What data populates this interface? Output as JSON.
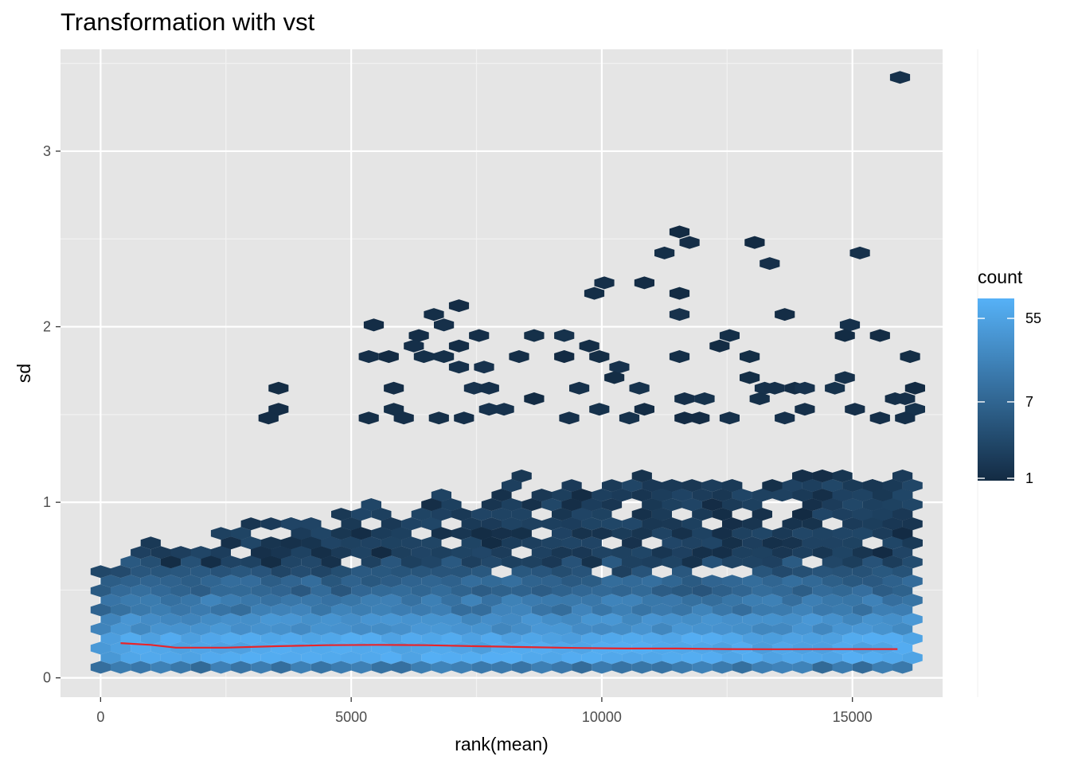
{
  "chart_data": {
    "type": "hexbin",
    "title": "Transformation with vst",
    "xlabel": "rank(mean)",
    "ylabel": "sd",
    "xlim": [
      -800,
      16800
    ],
    "ylim": [
      -0.11,
      3.58
    ],
    "x_ticks": [
      0,
      5000,
      10000,
      15000
    ],
    "x_tick_labels": [
      "0",
      "5000",
      "10000",
      "15000"
    ],
    "y_ticks": [
      0,
      1,
      2,
      3
    ],
    "y_tick_labels": [
      "0",
      "1",
      "2",
      "3"
    ],
    "grid": true,
    "legend": {
      "title": "count",
      "position": "right",
      "scale": "log",
      "range": [
        1,
        90
      ],
      "breaks": [
        1,
        7,
        55
      ],
      "break_labels": [
        "1",
        "7",
        "55"
      ],
      "color_low": "#132B43",
      "color_high": "#56B1F7"
    },
    "trend_line": {
      "color": "#e8242a",
      "x": [
        400,
        1000,
        1500,
        2500,
        3500,
        4500,
        5500,
        6500,
        7500,
        8500,
        9500,
        10500,
        11500,
        12500,
        13500,
        14500,
        15900
      ],
      "y": [
        0.198,
        0.188,
        0.172,
        0.172,
        0.18,
        0.186,
        0.188,
        0.186,
        0.18,
        0.175,
        0.17,
        0.167,
        0.167,
        0.164,
        0.163,
        0.164,
        0.164
      ]
    },
    "hexbin_bins": {
      "x_step": 400,
      "y_step": 0.0545,
      "columns": [
        0,
        41
      ],
      "y_min": 0.0,
      "sparse_outliers": [
        [
          15950,
          3.42
        ],
        [
          11550,
          2.54
        ],
        [
          11750,
          2.48
        ],
        [
          13050,
          2.48
        ],
        [
          11250,
          2.42
        ],
        [
          15150,
          2.42
        ],
        [
          13350,
          2.36
        ],
        [
          10850,
          2.25
        ],
        [
          10050,
          2.25
        ],
        [
          9850,
          2.19
        ],
        [
          11550,
          2.19
        ],
        [
          7150,
          2.12
        ],
        [
          6650,
          2.07
        ],
        [
          11550,
          2.07
        ],
        [
          13650,
          2.07
        ],
        [
          6850,
          2.01
        ],
        [
          5450,
          2.01
        ],
        [
          14950,
          2.01
        ],
        [
          9250,
          1.95
        ],
        [
          7550,
          1.95
        ],
        [
          12550,
          1.95
        ],
        [
          8650,
          1.95
        ],
        [
          6350,
          1.95
        ],
        [
          15550,
          1.95
        ],
        [
          14850,
          1.95
        ],
        [
          6250,
          1.89
        ],
        [
          7150,
          1.89
        ],
        [
          9750,
          1.89
        ],
        [
          12350,
          1.89
        ],
        [
          5350,
          1.83
        ],
        [
          5750,
          1.83
        ],
        [
          6450,
          1.83
        ],
        [
          6850,
          1.83
        ],
        [
          8350,
          1.83
        ],
        [
          9250,
          1.83
        ],
        [
          9950,
          1.83
        ],
        [
          11550,
          1.83
        ],
        [
          12950,
          1.83
        ],
        [
          16150,
          1.83
        ],
        [
          7150,
          1.77
        ],
        [
          7650,
          1.77
        ],
        [
          10350,
          1.77
        ],
        [
          10250,
          1.71
        ],
        [
          12950,
          1.71
        ],
        [
          14850,
          1.71
        ],
        [
          3550,
          1.65
        ],
        [
          5850,
          1.65
        ],
        [
          7450,
          1.65
        ],
        [
          7750,
          1.65
        ],
        [
          9550,
          1.65
        ],
        [
          10750,
          1.65
        ],
        [
          13250,
          1.65
        ],
        [
          13450,
          1.65
        ],
        [
          13850,
          1.65
        ],
        [
          14050,
          1.65
        ],
        [
          14650,
          1.65
        ],
        [
          16250,
          1.65
        ],
        [
          8650,
          1.59
        ],
        [
          11650,
          1.59
        ],
        [
          12050,
          1.59
        ],
        [
          13150,
          1.59
        ],
        [
          15850,
          1.59
        ],
        [
          16050,
          1.59
        ],
        [
          3550,
          1.53
        ],
        [
          5850,
          1.53
        ],
        [
          7750,
          1.53
        ],
        [
          8050,
          1.53
        ],
        [
          9950,
          1.53
        ],
        [
          10850,
          1.53
        ],
        [
          14050,
          1.53
        ],
        [
          15050,
          1.53
        ],
        [
          16250,
          1.53
        ],
        [
          3350,
          1.48
        ],
        [
          5350,
          1.48
        ],
        [
          6050,
          1.48
        ],
        [
          6750,
          1.48
        ],
        [
          7250,
          1.48
        ],
        [
          9350,
          1.48
        ],
        [
          10550,
          1.48
        ],
        [
          11650,
          1.48
        ],
        [
          11950,
          1.48
        ],
        [
          12550,
          1.48
        ],
        [
          13650,
          1.48
        ],
        [
          15550,
          1.48
        ],
        [
          16050,
          1.48
        ]
      ]
    }
  }
}
